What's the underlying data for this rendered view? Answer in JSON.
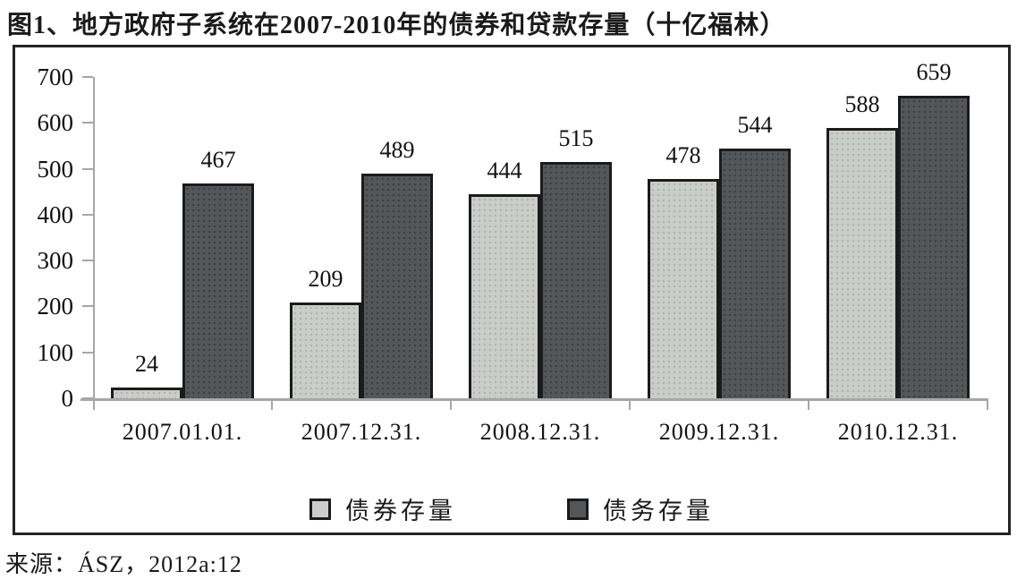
{
  "title": "图1、地方政府子系统在2007-2010年的债券和贷款存量（十亿福林）",
  "source": "来源：ÁSZ，2012a:12",
  "colors": {
    "bonds_fill": "#cbcdc8",
    "loans_fill": "#54575a",
    "bar_border": "#1b1b1b",
    "axis": "#a5a8a5",
    "frame_border": "#242424",
    "text": "#1a1a1a"
  },
  "chart_data": {
    "type": "bar",
    "title": "图1、地方政府子系统在2007-2010年的债券和贷款存量（十亿福林）",
    "xlabel": "",
    "ylabel": "",
    "categories": [
      "2007.01.01.",
      "2007.12.31.",
      "2008.12.31.",
      "2009.12.31.",
      "2010.12.31."
    ],
    "series": [
      {
        "name": "债券存量",
        "color": "#cbcdc8",
        "values": [
          24,
          209,
          444,
          478,
          588
        ]
      },
      {
        "name": "债务存量",
        "color": "#54575a",
        "values": [
          467,
          489,
          515,
          544,
          659
        ]
      }
    ],
    "ylim": [
      0,
      700
    ],
    "ytick_step": 100,
    "grid": false,
    "bar_value_labels": true,
    "legend_position": "bottom"
  }
}
